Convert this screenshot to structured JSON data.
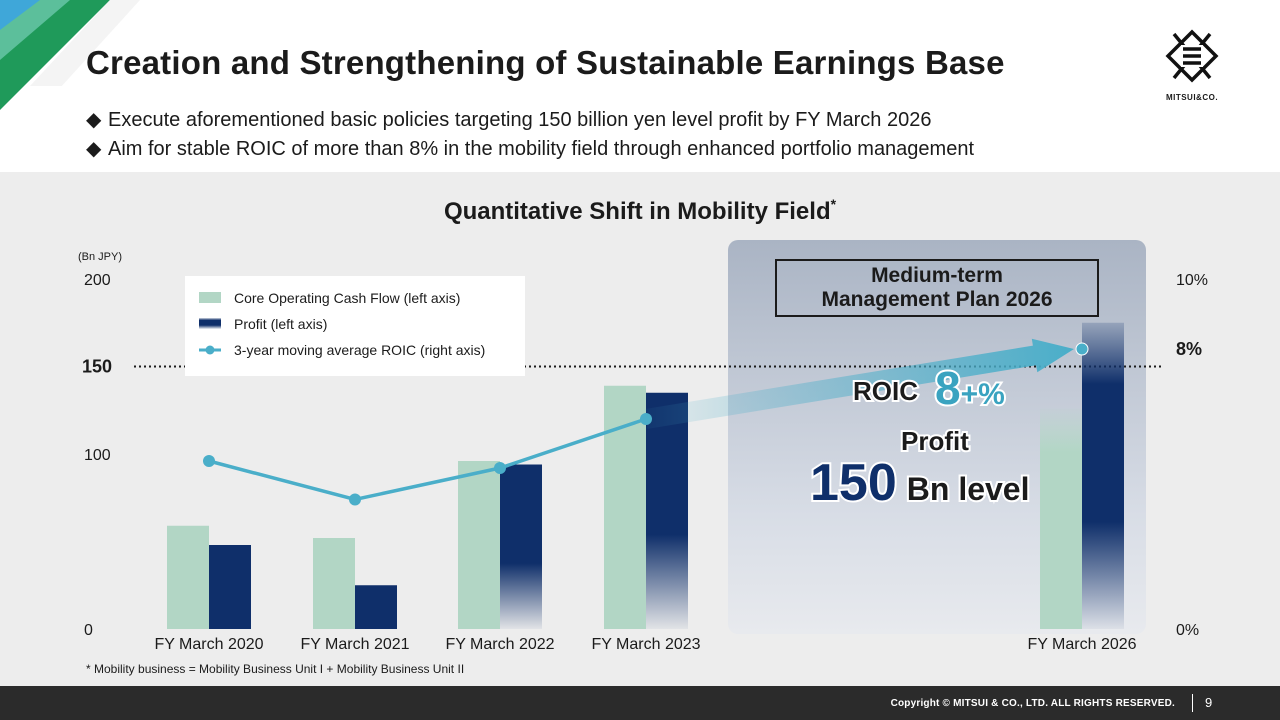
{
  "header": {
    "title": "Creation and Strengthening of Sustainable Earnings Base",
    "bullets": [
      "Execute aforementioned basic policies targeting 150 billion yen level profit by FY March 2026",
      "Aim for stable ROIC of more than 8% in the mobility field through enhanced portfolio management"
    ],
    "bullet_mark": "◆"
  },
  "logo": {
    "text": "MITSUI&CO.",
    "icon": "mitsui-logo-icon"
  },
  "chart_data": {
    "type": "bar",
    "title": "Quantitative Shift in Mobility Field",
    "title_marker": "*",
    "left_axis_unit": "(Bn JPY)",
    "left_ticks": [
      "200",
      "150",
      "100",
      "0"
    ],
    "right_ticks": [
      "10%",
      "8%",
      "0%"
    ],
    "ylim": [
      0,
      200
    ],
    "y2lim": [
      0,
      10
    ],
    "categories": [
      "FY March 2020",
      "FY March 2021",
      "FY March 2022",
      "FY March 2023",
      "FY March 2026"
    ],
    "series": [
      {
        "name": "Core Operating Cash Flow (left axis)",
        "type": "bar",
        "axis": "left",
        "color": "#b2d6c5",
        "values": [
          59,
          52,
          96,
          139,
          126
        ]
      },
      {
        "name": "Profit (left axis)",
        "type": "bar",
        "axis": "left",
        "color": "#0f2f6a",
        "values": [
          48,
          25,
          94,
          135,
          175
        ]
      },
      {
        "name": "3-year moving average ROIC (right axis)",
        "type": "line",
        "axis": "right",
        "color": "#4aaec9",
        "values": [
          4.8,
          3.7,
          4.6,
          6.0,
          8.0
        ]
      }
    ],
    "reference_line": {
      "value": 150,
      "label": "150",
      "right_label": "8%"
    },
    "legend_position": "top-left",
    "plan_box": {
      "title_line1": "Medium-term",
      "title_line2": "Management Plan 2026",
      "roic_label": "ROIC",
      "roic_value": "8",
      "roic_suffix": "+%",
      "profit_label": "Profit",
      "profit_value": "150",
      "profit_unit": "Bn level"
    },
    "footnote": "* Mobility business = Mobility Business Unit I + Mobility Business Unit II"
  },
  "footer": {
    "copyright": "Copyright © MITSUI & CO., LTD. ALL RIGHTS RESERVED.",
    "page": "9"
  }
}
